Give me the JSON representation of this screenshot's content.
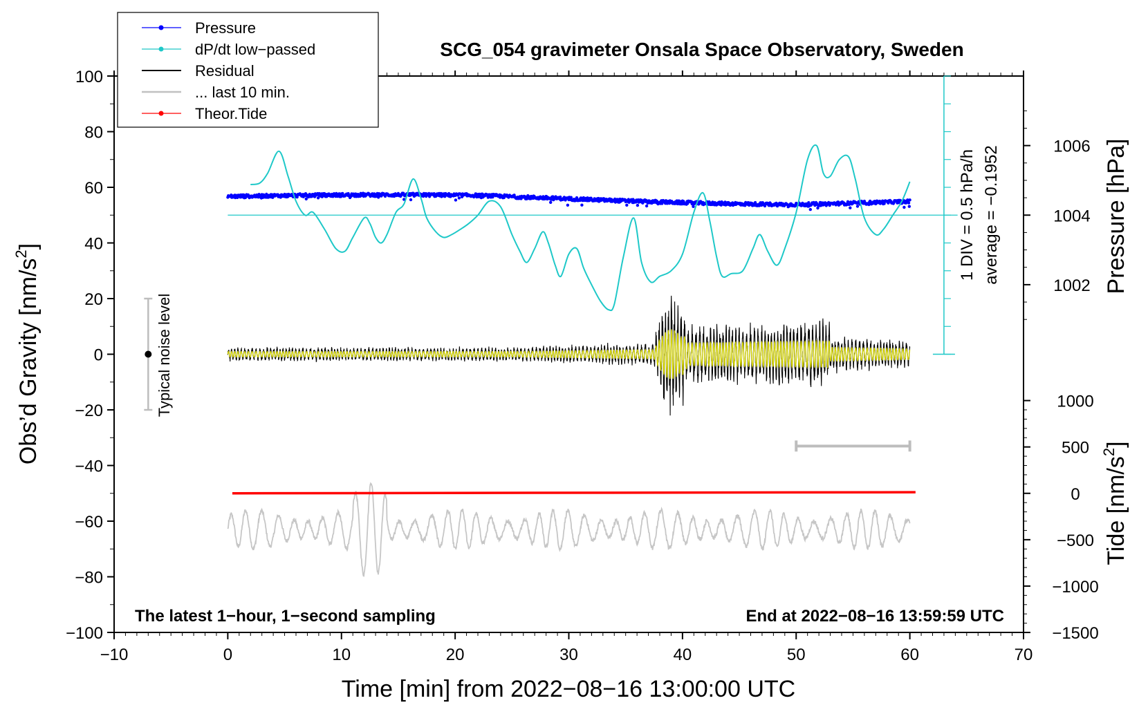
{
  "chart_data": {
    "type": "line",
    "title": "SCG_054 gravimeter Onsala Space Observatory, Sweden",
    "xlabel": "Time [min] from 2022−08−16 13:00:00 UTC",
    "ylabel_left_main": "Obs’d Gravity [nm/s",
    "ylabel_left_sup": "2",
    "ylabel_left_end": "]",
    "ylabel_right_pressure": "Pressure [hPa]",
    "ylabel_right_tide_main": "Tide [nm/s",
    "ylabel_right_tide_sup": "2",
    "ylabel_right_tide_end": "]",
    "xlim": [
      -10,
      70
    ],
    "ylim": [
      -100,
      100
    ],
    "x_ticks": [
      -10,
      0,
      10,
      20,
      30,
      40,
      50,
      60,
      70
    ],
    "x_tick_labels": [
      "−10",
      "0",
      "10",
      "20",
      "30",
      "40",
      "50",
      "60",
      "70"
    ],
    "y_ticks": [
      100,
      80,
      60,
      40,
      20,
      0,
      -20,
      -40,
      -60,
      -80,
      -100
    ],
    "y_tick_labels": [
      "100",
      "80",
      "60",
      "40",
      "20",
      "0",
      "−20",
      "−40",
      "−60",
      "−80",
      "−100"
    ],
    "pressure_axis": {
      "ticks": [
        1002,
        1004,
        1006
      ],
      "tick_labels": [
        "1002",
        "1004",
        "1006"
      ],
      "gravity_at_1004": 50,
      "gravity_per_hPa": 12.5
    },
    "tide_axis": {
      "ticks": [
        1000,
        500,
        0,
        -500,
        -1000,
        -1500
      ],
      "tick_labels": [
        "1000",
        "500",
        "0",
        "−500",
        "−1000",
        "−1500"
      ],
      "gravity_at_0": -50,
      "gravity_per_500": 16.67
    },
    "dpdt_scale": {
      "label_div": "1 DIV = 0.5 hPa/h",
      "label_avg": "average = −0.1952",
      "zero_level": 50,
      "axis_bottom": 0,
      "axis_top": 100,
      "divisions": 10
    },
    "legend": [
      {
        "label": "Pressure",
        "color": "#0000ff",
        "marker": true
      },
      {
        "label": "dP/dt low−passed",
        "color": "#00c8c8",
        "marker": true
      },
      {
        "label": "Residual",
        "color": "#000000",
        "marker": false
      },
      {
        "label": "... last 10 min.",
        "color": "#c0c0c0",
        "marker": false
      },
      {
        "label": "Theor.Tide",
        "color": "#ff0000",
        "marker": true
      }
    ],
    "noise_level": {
      "label": "Typical noise level",
      "x": -7,
      "center": 0,
      "low": -20,
      "high": 20
    },
    "last10_bracket": {
      "x_start": 50,
      "x_end": 60,
      "y": -33
    },
    "note_left": "The latest 1−hour, 1−second sampling",
    "note_right": "End at 2022−08−16 13:59:59 UTC",
    "series": [
      {
        "name": "dP/dt low-passed",
        "color": "#1ec8c8",
        "x": [
          2.0,
          2.8,
          3.5,
          4.5,
          5.3,
          6.0,
          6.8,
          7.5,
          8.5,
          9.5,
          10.3,
          11.0,
          12.0,
          12.5,
          13.0,
          13.5,
          14.0,
          14.8,
          15.5,
          16.3,
          17.0,
          17.5,
          18.3,
          19.0,
          19.7,
          20.5,
          21.2,
          22.0,
          23.0,
          24.0,
          25.0,
          25.7,
          26.3,
          27.0,
          27.7,
          28.2,
          28.8,
          29.3,
          30.0,
          30.7,
          31.3,
          32.0,
          32.8,
          33.5,
          34.0,
          34.8,
          35.7,
          36.4,
          37.2,
          38.0,
          39.0,
          40.0,
          41.0,
          41.8,
          42.4,
          43.0,
          43.5,
          44.3,
          45.3,
          46.2,
          46.8,
          47.5,
          48.3,
          49.0,
          50.0,
          51.0,
          51.8,
          52.4,
          53.0,
          53.8,
          54.6,
          55.2,
          56.0,
          57.0,
          57.7,
          58.5,
          59.3,
          60.0
        ],
        "values": [
          61,
          61.5,
          65,
          73,
          64,
          55,
          50,
          51,
          45,
          38,
          37,
          42,
          49,
          47,
          42,
          40,
          43,
          51,
          54,
          63,
          56,
          49,
          44,
          42,
          43,
          45,
          47,
          50,
          55,
          53,
          43,
          37,
          33,
          38,
          44,
          40,
          32,
          28,
          36,
          38,
          31,
          25,
          19,
          16,
          18,
          35,
          49,
          33,
          26,
          28,
          30,
          36,
          51,
          58,
          48,
          35,
          28,
          29,
          30,
          38,
          43,
          37,
          32,
          38,
          51,
          70,
          75,
          65,
          64,
          70,
          71,
          63,
          49,
          43,
          45,
          50,
          55,
          62
        ]
      }
    ]
  }
}
